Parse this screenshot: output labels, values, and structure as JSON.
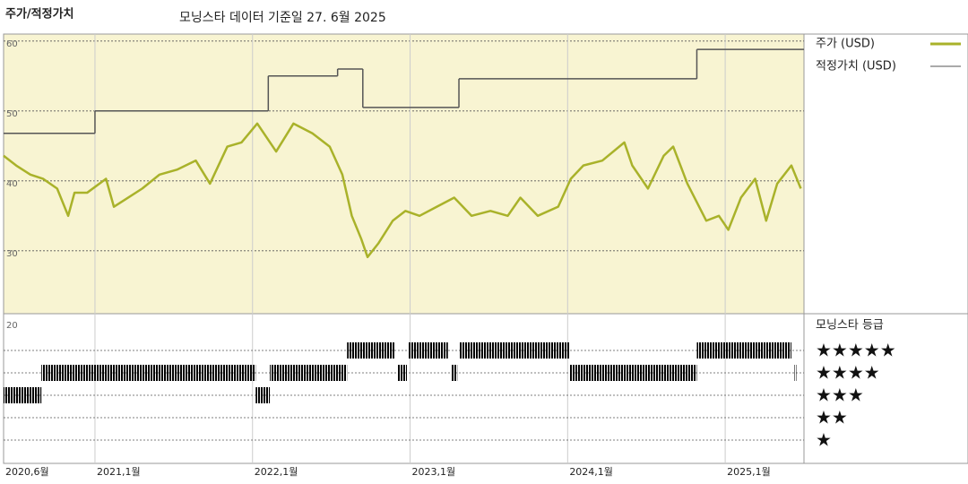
{
  "chart_data": {
    "type": "line",
    "title": "주가/적정가치",
    "subtitle": "모닝스타 데이터 기준일 27. 6월 2025",
    "xlim": [
      2020.42,
      2025.5
    ],
    "xticks": [
      {
        "value": 2020.42,
        "label": "2020,6월"
      },
      {
        "value": 2021.0,
        "label": "2021,1월"
      },
      {
        "value": 2022.0,
        "label": "2022,1월"
      },
      {
        "value": 2023.0,
        "label": "2023,1월"
      },
      {
        "value": 2024.0,
        "label": "2024,1월"
      },
      {
        "value": 2025.0,
        "label": "2025,1월"
      }
    ],
    "ylim": [
      21,
      61
    ],
    "yticks": [
      30,
      40,
      50,
      60
    ],
    "grid": true,
    "x": [
      2020.42,
      2020.5,
      2020.59,
      2020.67,
      2020.76,
      2020.83,
      2020.87,
      2020.95,
      2021.07,
      2021.12,
      2021.21,
      2021.3,
      2021.41,
      2021.52,
      2021.64,
      2021.73,
      2021.84,
      2021.93,
      2022.03,
      2022.09,
      2022.15,
      2022.26,
      2022.38,
      2022.49,
      2022.57,
      2022.63,
      2022.69,
      2022.73,
      2022.8,
      2022.89,
      2022.97,
      2023.06,
      2023.17,
      2023.28,
      2023.39,
      2023.51,
      2023.62,
      2023.7,
      2023.81,
      2023.94,
      2024.02,
      2024.1,
      2024.22,
      2024.36,
      2024.41,
      2024.51,
      2024.61,
      2024.67,
      2024.76,
      2024.88,
      2024.96,
      2025.02,
      2025.1,
      2025.19,
      2025.26,
      2025.33,
      2025.42,
      2025.48
    ],
    "series": [
      {
        "name": "주가 (USD)",
        "color": "#a9b22a",
        "values": [
          43.6,
          42.2,
          40.9,
          40.3,
          38.9,
          35.0,
          38.3,
          38.3,
          40.3,
          36.3,
          37.6,
          38.9,
          40.9,
          41.6,
          42.9,
          39.6,
          44.9,
          45.5,
          48.2,
          46.2,
          44.2,
          48.2,
          46.8,
          44.9,
          40.9,
          35.0,
          31.7,
          29.1,
          31.1,
          34.3,
          35.7,
          35.0,
          36.3,
          37.6,
          35.0,
          35.7,
          35.0,
          37.6,
          35.0,
          36.3,
          40.3,
          42.2,
          42.9,
          45.5,
          42.2,
          38.9,
          43.6,
          44.9,
          39.6,
          34.3,
          35.0,
          33.0,
          37.6,
          40.3,
          34.3,
          39.6,
          42.2,
          38.9
        ]
      },
      {
        "name": "적정가치 (USD)",
        "color": "#555555",
        "step": true,
        "x": [
          2020.42,
          2021.0,
          2022.1,
          2022.54,
          2022.7,
          2023.31,
          2024.82
        ],
        "values": [
          46.8,
          50.0,
          55.0,
          56.0,
          50.5,
          54.6,
          58.8
        ]
      }
    ],
    "ratings": {
      "title": "모닝스타 등급",
      "axis_label": "20",
      "levels": [
        {
          "value": 5,
          "label": "★★★★★"
        },
        {
          "value": 4,
          "label": "★★★★"
        },
        {
          "value": 3,
          "label": "★★★"
        },
        {
          "value": 2,
          "label": "★★"
        },
        {
          "value": 1,
          "label": "★"
        }
      ],
      "colors": {
        "5": "#3a8a6e",
        "4": "#333333",
        "3": "#333333"
      },
      "segments": [
        {
          "start": 2020.42,
          "end": 2020.66,
          "stars": 3
        },
        {
          "start": 2020.66,
          "end": 2022.02,
          "stars": 4
        },
        {
          "start": 2022.02,
          "end": 2022.11,
          "stars": 3
        },
        {
          "start": 2022.11,
          "end": 2022.6,
          "stars": 4
        },
        {
          "start": 2022.6,
          "end": 2022.9,
          "stars": 5
        },
        {
          "start": 2022.92,
          "end": 2022.98,
          "stars": 4
        },
        {
          "start": 2022.99,
          "end": 2023.24,
          "stars": 5
        },
        {
          "start": 2023.26,
          "end": 2023.3,
          "stars": 4
        },
        {
          "start": 2023.31,
          "end": 2024.01,
          "stars": 5
        },
        {
          "start": 2024.01,
          "end": 2024.82,
          "stars": 4
        },
        {
          "start": 2024.82,
          "end": 2025.42,
          "stars": 5
        },
        {
          "start": 2025.44,
          "end": 2025.45,
          "stars": 4
        }
      ]
    }
  }
}
